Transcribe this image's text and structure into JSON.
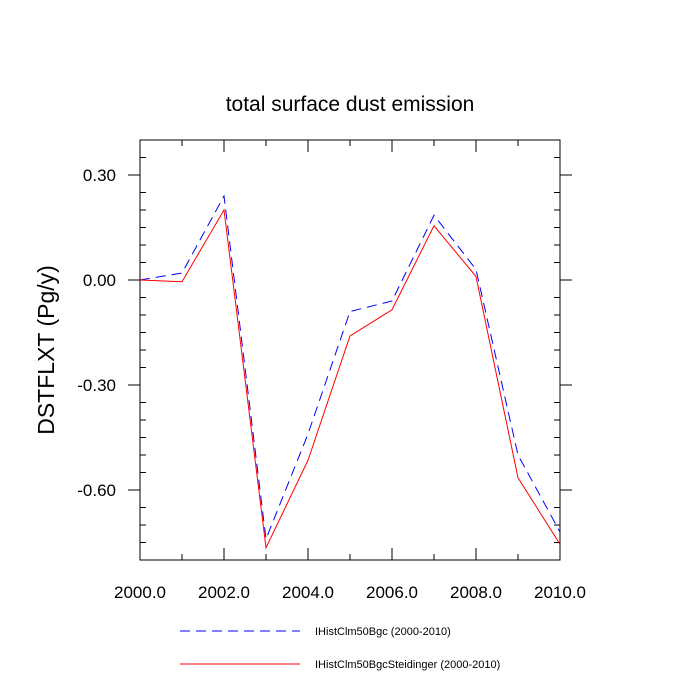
{
  "chart_data": {
    "type": "line",
    "title": "total surface dust emission",
    "xlabel": "",
    "ylabel": "DSTFLXT  (Pg/y)",
    "xlim": [
      2000,
      2010
    ],
    "ylim": [
      -0.8,
      0.4
    ],
    "x_ticks": [
      2000,
      2002,
      2004,
      2006,
      2008,
      2010
    ],
    "x_tick_labels": [
      "2000.0",
      "2002.0",
      "2004.0",
      "2006.0",
      "2008.0",
      "2010.0"
    ],
    "y_ticks": [
      0.3,
      0.0,
      -0.3,
      -0.6
    ],
    "y_tick_labels": [
      "0.30",
      "0.00",
      "-0.30",
      "-0.60"
    ],
    "legend_position": "bottom",
    "grid": false,
    "x": [
      2000,
      2001,
      2002,
      2003,
      2004,
      2005,
      2006,
      2007,
      2008,
      2009,
      2010
    ],
    "series": [
      {
        "name": "IHistClm50Bgc (2000-2010)",
        "color": "#0000ff",
        "style": "dashed",
        "values": [
          0.0,
          0.02,
          0.24,
          -0.74,
          -0.44,
          -0.09,
          -0.06,
          0.185,
          0.03,
          -0.5,
          -0.72
        ]
      },
      {
        "name": "IHistClm50BgcSteidinger (2000-2010)",
        "color": "#ff0000",
        "style": "solid",
        "values": [
          0.0,
          -0.005,
          0.2,
          -0.765,
          -0.515,
          -0.16,
          -0.085,
          0.155,
          0.01,
          -0.565,
          -0.755
        ]
      }
    ]
  }
}
